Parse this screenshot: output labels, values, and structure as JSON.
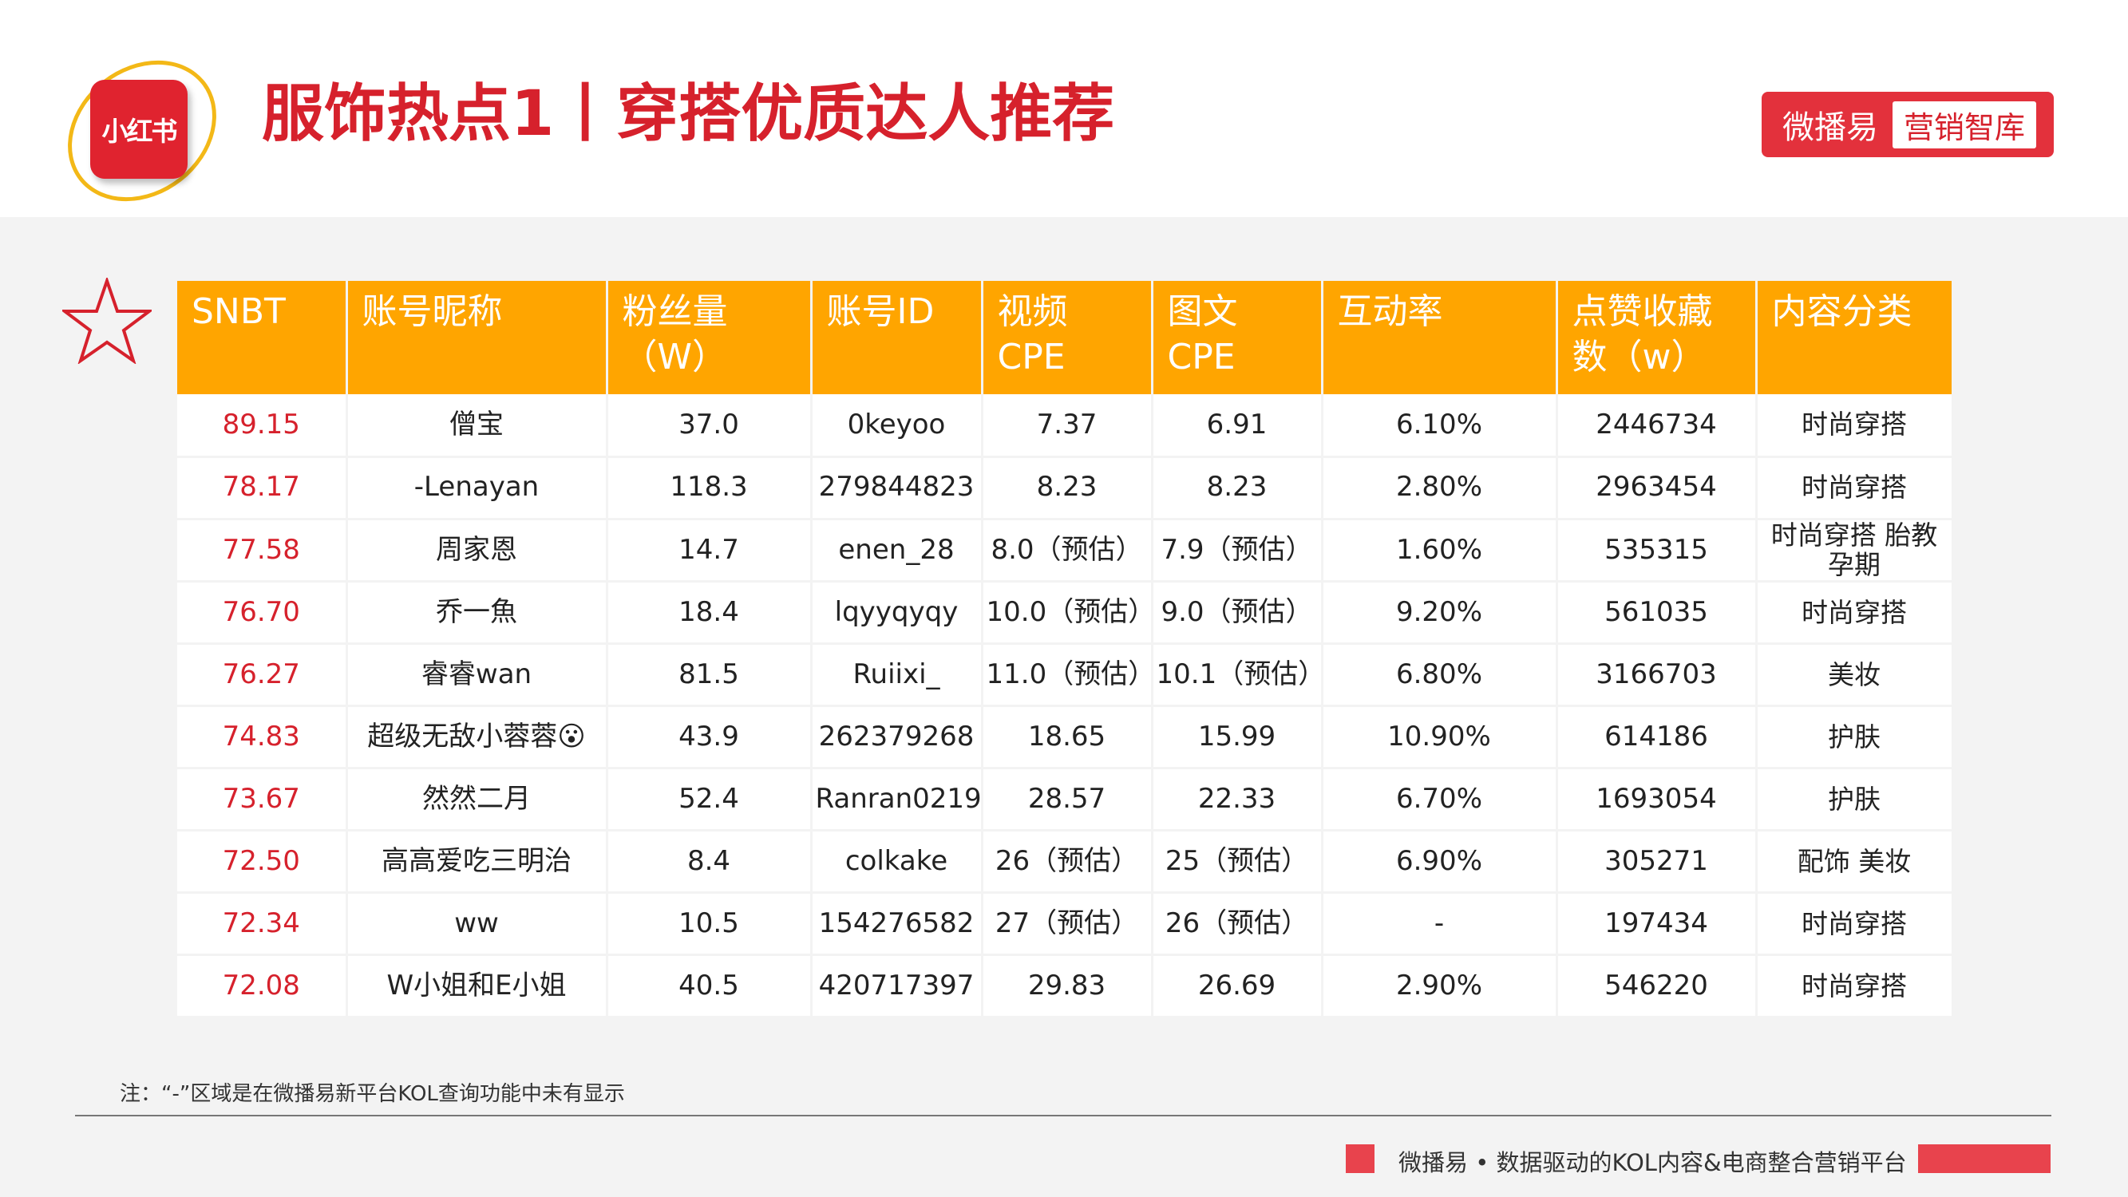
{
  "header": {
    "logo_text": "小红书",
    "title": "服饰热点1丨穿搭优质达人推荐",
    "brand_name": "微播易",
    "brand_tag": "营销智库"
  },
  "table": {
    "columns": [
      {
        "line1": "SNBT",
        "line2": ""
      },
      {
        "line1": "账号昵称",
        "line2": ""
      },
      {
        "line1": "粉丝量",
        "line2": "（W）"
      },
      {
        "line1": "账号ID",
        "line2": ""
      },
      {
        "line1": "视频",
        "line2": "CPE"
      },
      {
        "line1": "图文",
        "line2": "CPE"
      },
      {
        "line1": "互动率",
        "line2": ""
      },
      {
        "line1": "点赞收藏",
        "line2": "数（w）"
      },
      {
        "line1": "内容分类",
        "line2": ""
      }
    ],
    "rows": [
      [
        "89.15",
        "僧宝",
        "37.0",
        "0keyoo",
        "7.37",
        "6.91",
        "6.10%",
        "2446734",
        "时尚穿搭"
      ],
      [
        "78.17",
        "-Lenayan",
        "118.3",
        "279844823",
        "8.23",
        "8.23",
        "2.80%",
        "2963454",
        "时尚穿搭"
      ],
      [
        "77.58",
        "周家恩",
        "14.7",
        "enen_28",
        "8.0（预估）",
        "7.9（预估）",
        "1.60%",
        "535315",
        "时尚穿搭 胎教孕期"
      ],
      [
        "76.70",
        "乔一魚",
        "18.4",
        "lqyyqyqy",
        "10.0（预估）",
        "9.0（预估）",
        "9.20%",
        "561035",
        "时尚穿搭"
      ],
      [
        "76.27",
        "睿睿wan",
        "81.5",
        "Ruiixi_",
        "11.0（预估）",
        "10.1（预估）",
        "6.80%",
        "3166703",
        "美妆"
      ],
      [
        "74.83",
        "超级无敌小蓉蓉😮",
        "43.9",
        "262379268",
        "18.65",
        "15.99",
        "10.90%",
        "614186",
        "护肤"
      ],
      [
        "73.67",
        "然然二月",
        "52.4",
        "Ranran0219",
        "28.57",
        "22.33",
        "6.70%",
        "1693054",
        "护肤"
      ],
      [
        "72.50",
        "高高爱吃三明治",
        "8.4",
        "colkake",
        "26（预估）",
        "25（预估）",
        "6.90%",
        "305271",
        "配饰 美妆"
      ],
      [
        "72.34",
        "ww",
        "10.5",
        "154276582",
        "27（预估）",
        "26（预估）",
        "-",
        "197434",
        "时尚穿搭"
      ],
      [
        "72.08",
        "W小姐和E小姐",
        "40.5",
        "420717397",
        "29.83",
        "26.69",
        "2.90%",
        "546220",
        "时尚穿搭"
      ]
    ]
  },
  "note": "注：“-”区域是在微播易新平台KOL查询功能中未有显示",
  "footer": "微播易 • 数据驱动的KOL内容&电商整合营销平台",
  "colors": {
    "accent_red": "#d6212c",
    "header_orange": "#ffa500",
    "logo_ring": "#f3b817"
  }
}
